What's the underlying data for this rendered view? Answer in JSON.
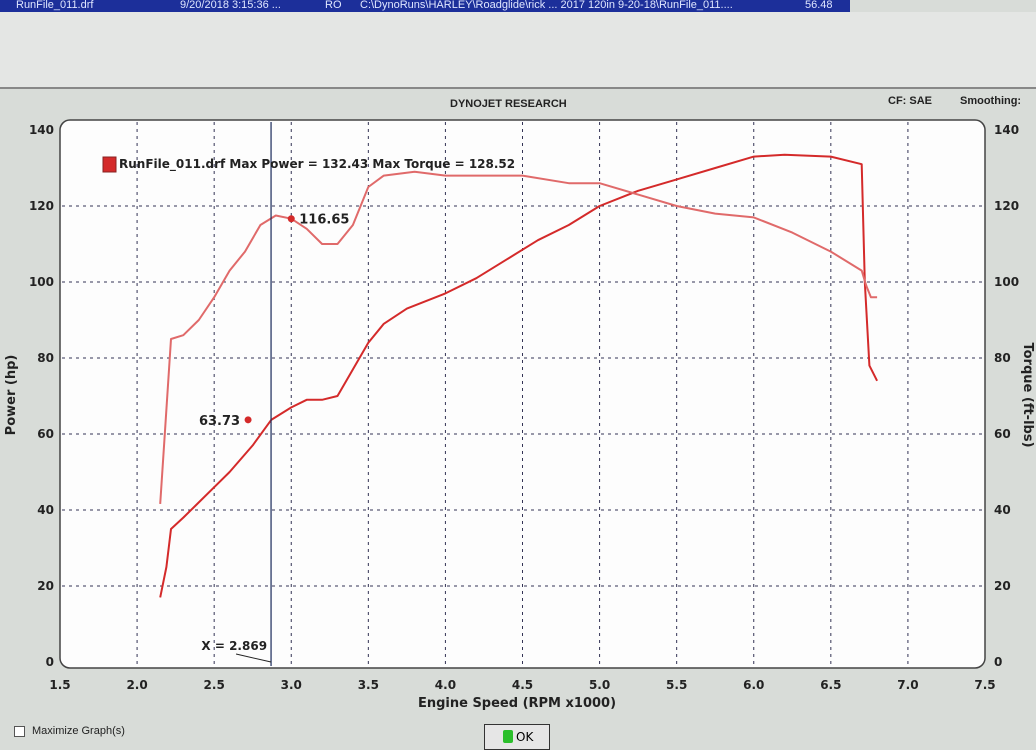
{
  "file_list_row": {
    "file": "RunFile_011.drf",
    "date": "9/20/2018 3:15:36 ...",
    "flag": "RO",
    "path": "C:\\DynoRuns\\HARLEY\\Roadglide\\rick ... 2017 120in 9-20-18\\RunFile_011....",
    "value": "56.48"
  },
  "header": {
    "title": "DYNOJET RESEARCH",
    "cf": "CF: SAE",
    "smoothing": "Smoothing:"
  },
  "footer": {
    "maximize_label": "Maximize Graph(s)",
    "ok_label": "OK"
  },
  "chart_data": {
    "type": "line",
    "title": "DYNOJET RESEARCH",
    "xlabel": "Engine Speed (RPM x1000)",
    "ylabel": "Power (hp)",
    "y2label": "Torque (ft-lbs)",
    "xlim": [
      1.5,
      7.5
    ],
    "ylim": [
      0,
      140
    ],
    "y2lim": [
      0,
      140
    ],
    "xticks": [
      "1.5",
      "2.0",
      "2.5",
      "3.0",
      "3.5",
      "4.0",
      "4.5",
      "5.0",
      "5.5",
      "6.0",
      "6.5",
      "7.0",
      "7.5"
    ],
    "yticks": [
      "0",
      "20",
      "40",
      "60",
      "80",
      "100",
      "120",
      "140"
    ],
    "y2ticks": [
      "0",
      "20",
      "40",
      "60",
      "80",
      "100",
      "120",
      "140"
    ],
    "grid": true,
    "legend": {
      "text": "RunFile_011.drf Max Power = 132.43 Max Torque = 128.52",
      "placement": "top-left",
      "color": "#d42a2a"
    },
    "cursor": {
      "x": 2.869,
      "label": "X = 2.869"
    },
    "markers": [
      {
        "series": "power",
        "x": 2.72,
        "y": 63.73,
        "label": "63.73"
      },
      {
        "series": "torque",
        "x": 3.0,
        "y": 116.65,
        "label": "116.65"
      }
    ],
    "series": [
      {
        "key": "power",
        "color": "#d42a2a",
        "x": [
          2.15,
          2.19,
          2.22,
          2.3,
          2.4,
          2.5,
          2.6,
          2.75,
          2.87,
          3.0,
          3.1,
          3.2,
          3.3,
          3.4,
          3.5,
          3.6,
          3.75,
          4.0,
          4.2,
          4.4,
          4.6,
          4.8,
          5.0,
          5.25,
          5.5,
          5.75,
          6.0,
          6.2,
          6.5,
          6.7,
          6.72,
          6.75,
          6.8
        ],
        "y": [
          17,
          25,
          35,
          38,
          42,
          46,
          50,
          57,
          63.7,
          67,
          69,
          69,
          70,
          77,
          84,
          89,
          93,
          97,
          101,
          106,
          111,
          115,
          120,
          124,
          127,
          130,
          133,
          133.5,
          133,
          131,
          100,
          78,
          74
        ]
      },
      {
        "key": "torque",
        "color": "#e06a6a",
        "x": [
          2.15,
          2.18,
          2.22,
          2.3,
          2.4,
          2.5,
          2.6,
          2.7,
          2.8,
          2.9,
          3.0,
          3.1,
          3.2,
          3.3,
          3.4,
          3.5,
          3.6,
          3.8,
          4.0,
          4.3,
          4.5,
          4.8,
          5.0,
          5.25,
          5.5,
          5.75,
          6.0,
          6.25,
          6.5,
          6.7,
          6.73,
          6.76,
          6.8
        ],
        "y": [
          41.6,
          60,
          85,
          86,
          90,
          96,
          103,
          108,
          115,
          117.5,
          116.65,
          114,
          110,
          110,
          115,
          125,
          128,
          129,
          128,
          128,
          128,
          126,
          126,
          123,
          120,
          118,
          117,
          113,
          108,
          103,
          99,
          96,
          96
        ]
      }
    ]
  }
}
